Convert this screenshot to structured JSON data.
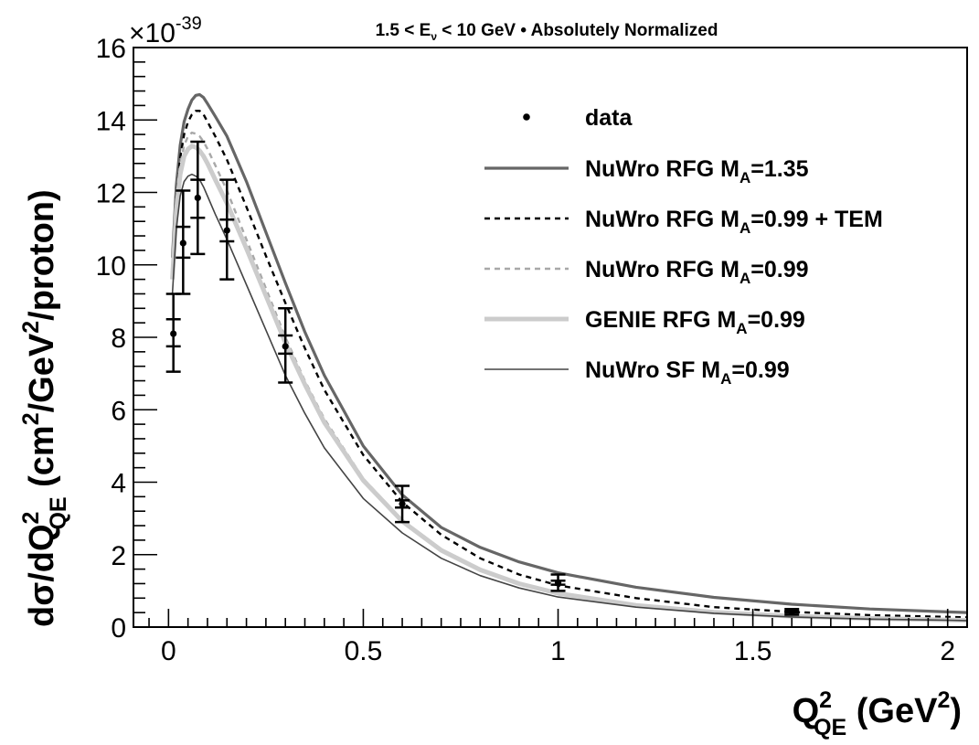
{
  "chart_data": {
    "type": "line",
    "title": {
      "pre": "1.5 < E",
      "sub": "ν",
      "post": " < 10 GeV • Absolutely Normalized"
    },
    "exponent": {
      "base": "×10",
      "power": "-39"
    },
    "xlabel": {
      "a": "Q",
      "sup": "2",
      "sub": "QE",
      "b": " (GeV",
      "sup2": "2",
      "c": ")"
    },
    "ylabel": {
      "a": "dσ/dQ",
      "sup": "2",
      "sub": "QE",
      "b": " (cm",
      "sup2": "2",
      "c": "/GeV",
      "sup3": "2",
      "d": "/proton)"
    },
    "xlim": [
      -0.09,
      2.05
    ],
    "ylim": [
      0,
      16
    ],
    "x_ticks": [
      {
        "v": 0,
        "label": "0"
      },
      {
        "v": 0.5,
        "label": "0.5"
      },
      {
        "v": 1,
        "label": "1"
      },
      {
        "v": 1.5,
        "label": "1.5"
      },
      {
        "v": 2,
        "label": "2"
      }
    ],
    "y_ticks": [
      {
        "v": 0,
        "label": "0"
      },
      {
        "v": 2,
        "label": "2"
      },
      {
        "v": 4,
        "label": "4"
      },
      {
        "v": 6,
        "label": "6"
      },
      {
        "v": 8,
        "label": "8"
      },
      {
        "v": 10,
        "label": "10"
      },
      {
        "v": 12,
        "label": "12"
      },
      {
        "v": 14,
        "label": "14"
      },
      {
        "v": 16,
        "label": "16"
      }
    ],
    "legend_position": "top-right",
    "data": {
      "name": "data",
      "points": [
        {
          "x": 0.0125,
          "y": 8.1,
          "stat": [
            7.75,
            8.5
          ],
          "tot": [
            7.05,
            9.2
          ]
        },
        {
          "x": 0.0375,
          "y": 10.6,
          "stat": [
            10.2,
            11.05
          ],
          "tot": [
            9.2,
            12.05
          ]
        },
        {
          "x": 0.075,
          "y": 11.85,
          "stat": [
            11.3,
            12.35
          ],
          "tot": [
            10.3,
            13.4
          ]
        },
        {
          "x": 0.15,
          "y": 10.95,
          "stat": [
            10.65,
            11.25
          ],
          "tot": [
            9.6,
            12.35
          ]
        },
        {
          "x": 0.3,
          "y": 7.75,
          "stat": [
            7.55,
            8.05
          ],
          "tot": [
            6.75,
            8.8
          ]
        },
        {
          "x": 0.6,
          "y": 3.4,
          "stat": [
            3.3,
            3.5
          ],
          "tot": [
            2.9,
            3.9
          ]
        },
        {
          "x": 1.0,
          "y": 1.22,
          "stat": [
            1.17,
            1.28
          ],
          "tot": [
            1.0,
            1.45
          ]
        },
        {
          "x": 1.6,
          "y": 0.42,
          "stat": [
            0.4,
            0.44
          ],
          "tot": [
            0.34,
            0.5
          ]
        }
      ]
    },
    "series": [
      {
        "name": "NuWro RFG M_A=1.35",
        "label": {
          "a": "NuWro RFG M",
          "sub": "A",
          "b": "=1.35"
        },
        "color": "#666666",
        "dash": "",
        "width": 3.2,
        "x": [
          0.01,
          0.02,
          0.03,
          0.04,
          0.05,
          0.06,
          0.07,
          0.08,
          0.09,
          0.1,
          0.12,
          0.15,
          0.2,
          0.25,
          0.3,
          0.35,
          0.4,
          0.5,
          0.6,
          0.7,
          0.8,
          0.9,
          1.0,
          1.2,
          1.4,
          1.6,
          1.8,
          2.0,
          2.05
        ],
        "y": [
          10.2,
          12.2,
          13.3,
          13.95,
          14.3,
          14.55,
          14.68,
          14.7,
          14.62,
          14.45,
          14.1,
          13.55,
          12.3,
          10.9,
          9.5,
          8.15,
          6.95,
          5.0,
          3.65,
          2.75,
          2.2,
          1.8,
          1.5,
          1.1,
          0.82,
          0.63,
          0.5,
          0.42,
          0.4
        ]
      },
      {
        "name": "NuWro RFG M_A=0.99 + TEM",
        "label": {
          "a": "NuWro RFG M",
          "sub": "A",
          "b": "=0.99 + TEM"
        },
        "color": "#000000",
        "dash": "6,5",
        "width": 2.4,
        "x": [
          0.01,
          0.02,
          0.03,
          0.04,
          0.05,
          0.06,
          0.07,
          0.08,
          0.09,
          0.1,
          0.12,
          0.15,
          0.2,
          0.25,
          0.3,
          0.35,
          0.4,
          0.5,
          0.6,
          0.7,
          0.8,
          0.9,
          1.0,
          1.2,
          1.4,
          1.6,
          1.8,
          2.0,
          2.05
        ],
        "y": [
          9.9,
          11.85,
          12.95,
          13.6,
          13.95,
          14.15,
          14.25,
          14.25,
          14.15,
          13.95,
          13.55,
          12.9,
          11.6,
          10.25,
          8.95,
          7.7,
          6.55,
          4.75,
          3.45,
          2.55,
          1.9,
          1.45,
          1.15,
          0.8,
          0.55,
          0.42,
          0.33,
          0.28,
          0.27
        ]
      },
      {
        "name": "NuWro RFG M_A=0.99",
        "label": {
          "a": "NuWro RFG M",
          "sub": "A",
          "b": "=0.99"
        },
        "color": "#a8a8a8",
        "dash": "6,5",
        "width": 2.4,
        "x": [
          0.01,
          0.02,
          0.03,
          0.04,
          0.05,
          0.06,
          0.07,
          0.08,
          0.09,
          0.1,
          0.12,
          0.15,
          0.2,
          0.25,
          0.3,
          0.35,
          0.4,
          0.5,
          0.6,
          0.7,
          0.8,
          0.9,
          1.0,
          1.2,
          1.4,
          1.6,
          1.8,
          2.0,
          2.05
        ],
        "y": [
          9.8,
          11.7,
          12.75,
          13.3,
          13.55,
          13.65,
          13.62,
          13.55,
          13.4,
          13.2,
          12.75,
          12.05,
          10.7,
          9.35,
          8.0,
          6.8,
          5.75,
          4.1,
          2.95,
          2.15,
          1.6,
          1.22,
          0.95,
          0.62,
          0.42,
          0.31,
          0.25,
          0.21,
          0.2
        ]
      },
      {
        "name": "GENIE RFG M_A=0.99",
        "label": {
          "a": "GENIE RFG M",
          "sub": "A",
          "b": "=0.99"
        },
        "color": "#cccccc",
        "dash": "",
        "width": 5,
        "x": [
          0.01,
          0.02,
          0.03,
          0.04,
          0.05,
          0.06,
          0.07,
          0.08,
          0.09,
          0.1,
          0.12,
          0.15,
          0.2,
          0.25,
          0.3,
          0.35,
          0.4,
          0.5,
          0.6,
          0.7,
          0.8,
          0.9,
          1.0,
          1.2,
          1.4,
          1.6,
          1.8,
          2.0,
          2.05
        ],
        "y": [
          9.6,
          11.5,
          12.5,
          13.0,
          13.2,
          13.28,
          13.25,
          13.15,
          13.0,
          12.8,
          12.35,
          11.7,
          10.45,
          9.15,
          7.85,
          6.7,
          5.65,
          4.05,
          2.92,
          2.12,
          1.58,
          1.2,
          0.93,
          0.6,
          0.41,
          0.3,
          0.24,
          0.2,
          0.19
        ]
      },
      {
        "name": "NuWro SF M_A=0.99",
        "label": {
          "a": "NuWro SF M",
          "sub": "A",
          "b": "=0.99"
        },
        "color": "#444444",
        "dash": "",
        "width": 1.6,
        "x": [
          0.01,
          0.02,
          0.03,
          0.04,
          0.05,
          0.06,
          0.07,
          0.08,
          0.09,
          0.1,
          0.12,
          0.15,
          0.2,
          0.25,
          0.3,
          0.35,
          0.4,
          0.5,
          0.6,
          0.7,
          0.8,
          0.9,
          1.0,
          1.2,
          1.4,
          1.6,
          1.8,
          2.0,
          2.05
        ],
        "y": [
          9.2,
          11.0,
          11.9,
          12.3,
          12.45,
          12.5,
          12.45,
          12.35,
          12.15,
          11.9,
          11.4,
          10.7,
          9.45,
          8.2,
          6.95,
          5.9,
          4.95,
          3.55,
          2.6,
          1.9,
          1.42,
          1.08,
          0.83,
          0.55,
          0.38,
          0.28,
          0.22,
          0.19,
          0.18
        ]
      }
    ]
  }
}
